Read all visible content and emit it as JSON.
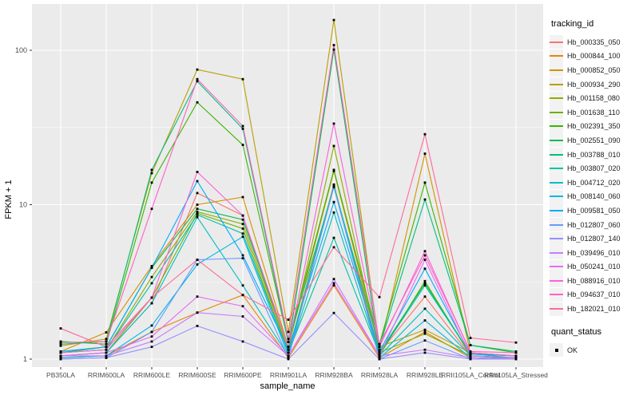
{
  "figure": {
    "background": "#FFFFFF",
    "panel_background": "#EBEBEB",
    "grid_color": "#FFFFFF",
    "tick_text_color": "#4D4D4D",
    "axis_title_color": "#000000",
    "point_color": "#000000"
  },
  "legend": {
    "tracking_title": "tracking_id",
    "quant_title": "quant_status",
    "quant_items": [
      {
        "label": "OK",
        "marker": "black-square"
      }
    ]
  },
  "chart_data": {
    "type": "line",
    "title": "",
    "xlabel": "sample_name",
    "ylabel": "FPKM + 1",
    "x_type": "categorical",
    "y_scale": "log10",
    "ylim": [
      1,
      180
    ],
    "y_major_ticks": [
      1,
      10,
      100
    ],
    "y_tick_labels": [
      "1",
      "10",
      "100"
    ],
    "y_minor_ticks": [
      3.162,
      31.62
    ],
    "grid": true,
    "legend_position": "right",
    "marker": "black-square",
    "categories": [
      "PB350LA",
      "RRIM600LA",
      "RRIM600LE",
      "RRIM600SE",
      "RRIM600PE",
      "RRIM901LA",
      "RRIM928BA",
      "RRIM928LA",
      "RRIM928LE",
      "RRII105LA_Control",
      "RRII105LA_Stressed"
    ],
    "series": [
      {
        "name": "Hb_000335_050",
        "color": "#F8766D",
        "values": [
          1.05,
          1.1,
          2.3,
          11.9,
          8.5,
          1.1,
          13.2,
          1.1,
          2.54,
          1.05,
          1.02
        ]
      },
      {
        "name": "Hb_000844_100",
        "color": "#E58700",
        "values": [
          1.02,
          1.05,
          1.5,
          2.0,
          2.6,
          1.02,
          3.0,
          1.02,
          1.5,
          1.02,
          1.0
        ]
      },
      {
        "name": "Hb_000852_050",
        "color": "#D39200",
        "values": [
          1.12,
          1.49,
          4.0,
          10.0,
          11.2,
          1.2,
          16.5,
          1.15,
          21.4,
          1.1,
          1.05
        ]
      },
      {
        "name": "Hb_000934_290",
        "color": "#B79F00",
        "values": [
          1.22,
          1.35,
          16.0,
          75.0,
          65.0,
          1.5,
          157.0,
          1.2,
          1.55,
          1.1,
          1.05
        ]
      },
      {
        "name": "Hb_001158_080",
        "color": "#93AA00",
        "values": [
          1.1,
          1.15,
          3.4,
          9.0,
          7.5,
          1.15,
          24.0,
          1.1,
          1.46,
          1.05,
          1.02
        ]
      },
      {
        "name": "Hb_001638_110",
        "color": "#6BB100",
        "values": [
          1.05,
          1.1,
          2.5,
          8.8,
          7.0,
          1.1,
          13.5,
          1.05,
          3.2,
          1.05,
          1.02
        ]
      },
      {
        "name": "Hb_002391_350",
        "color": "#39B600",
        "values": [
          1.3,
          1.25,
          13.9,
          46.0,
          24.4,
          1.29,
          16.8,
          1.25,
          13.9,
          1.23,
          1.1
        ]
      },
      {
        "name": "Hb_002551_090",
        "color": "#00BB4E",
        "values": [
          1.1,
          1.2,
          3.9,
          9.4,
          8.0,
          1.2,
          101.0,
          1.1,
          3.1,
          1.08,
          1.05
        ]
      },
      {
        "name": "Hb_003788_010",
        "color": "#00BF7D",
        "values": [
          1.25,
          1.3,
          16.8,
          63.0,
          31.0,
          1.29,
          13.0,
          1.2,
          10.8,
          1.23,
          1.12
        ]
      },
      {
        "name": "Hb_003807_020",
        "color": "#00C1A3",
        "values": [
          1.1,
          1.15,
          3.1,
          8.6,
          6.5,
          1.1,
          6.1,
          1.08,
          3.0,
          1.08,
          1.02
        ]
      },
      {
        "name": "Hb_004712_020",
        "color": "#00BFC4",
        "values": [
          1.05,
          1.1,
          2.3,
          8.3,
          3.0,
          1.05,
          8.9,
          1.05,
          2.12,
          1.05,
          1.0
        ]
      },
      {
        "name": "Hb_008140_060",
        "color": "#00B8E5",
        "values": [
          1.02,
          1.05,
          1.65,
          4.1,
          6.2,
          1.05,
          13.2,
          1.02,
          1.78,
          1.02,
          1.0
        ]
      },
      {
        "name": "Hb_009581_050",
        "color": "#00ACFC",
        "values": [
          1.12,
          1.2,
          3.9,
          14.2,
          4.7,
          1.15,
          10.4,
          1.12,
          3.85,
          1.08,
          1.05
        ]
      },
      {
        "name": "Hb_012807_060",
        "color": "#619CFF",
        "values": [
          1.0,
          1.02,
          1.5,
          4.4,
          4.5,
          1.02,
          13.0,
          1.0,
          1.32,
          1.0,
          1.0
        ]
      },
      {
        "name": "Hb_012807_140",
        "color": "#9590FF",
        "values": [
          1.0,
          1.02,
          1.2,
          1.64,
          1.3,
          1.0,
          1.99,
          1.0,
          1.1,
          1.0,
          1.0
        ]
      },
      {
        "name": "Hb_039496_010",
        "color": "#C77CFF",
        "values": [
          1.05,
          1.05,
          1.3,
          2.0,
          1.89,
          1.05,
          3.3,
          1.05,
          1.15,
          1.02,
          1.0
        ]
      },
      {
        "name": "Hb_050241_010",
        "color": "#E76BF3",
        "values": [
          1.05,
          1.1,
          1.4,
          2.54,
          2.2,
          1.05,
          3.1,
          1.05,
          4.4,
          1.05,
          1.02
        ]
      },
      {
        "name": "Hb_088916_010",
        "color": "#FA62DB",
        "values": [
          1.1,
          1.15,
          2.5,
          16.3,
          8.5,
          1.2,
          33.5,
          1.2,
          5.0,
          1.1,
          1.05
        ]
      },
      {
        "name": "Hb_094637_010",
        "color": "#FF61C3",
        "values": [
          1.28,
          1.3,
          9.4,
          65.0,
          32.3,
          1.35,
          108.0,
          1.25,
          4.7,
          1.12,
          1.1
        ]
      },
      {
        "name": "Hb_182021_010",
        "color": "#FF6A98",
        "values": [
          1.58,
          1.2,
          2.5,
          4.4,
          2.6,
          1.8,
          5.3,
          2.52,
          28.6,
          1.37,
          1.28
        ]
      }
    ]
  }
}
